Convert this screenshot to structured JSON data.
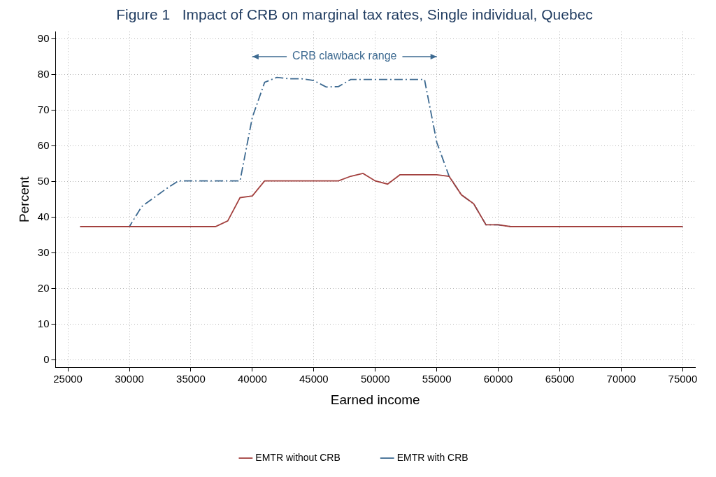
{
  "chart_data": {
    "type": "line",
    "title": "Figure 1   Impact of CRB on marginal tax rates, Single individual, Quebec",
    "x_label": "Earned income",
    "y_label": "Percent",
    "x": [
      26000,
      27000,
      28000,
      29000,
      30000,
      31000,
      32000,
      33000,
      34000,
      35000,
      36000,
      37000,
      38000,
      39000,
      40000,
      41000,
      42000,
      43000,
      44000,
      45000,
      46000,
      47000,
      48000,
      49000,
      50000,
      51000,
      52000,
      53000,
      54000,
      55000,
      56000,
      57000,
      58000,
      59000,
      60000,
      61000,
      62000,
      63000,
      64000,
      65000,
      66000,
      67000,
      68000,
      69000,
      70000,
      71000,
      72000,
      73000,
      74000,
      75000
    ],
    "series": [
      {
        "name": "EMTR without CRB",
        "color": "#a3413f",
        "line_style": "solid",
        "values": [
          37.4,
          37.4,
          37.4,
          37.4,
          37.4,
          37.4,
          37.4,
          37.4,
          37.4,
          37.4,
          37.4,
          37.4,
          39,
          45.5,
          46,
          50.2,
          50.2,
          50.2,
          50.2,
          50.2,
          50.2,
          50.2,
          51.5,
          52.3,
          50.2,
          49.3,
          51.9,
          51.9,
          51.9,
          51.9,
          51.5,
          46.3,
          43.8,
          37.9,
          37.9,
          37.4,
          37.4,
          37.4,
          37.4,
          37.4,
          37.4,
          37.4,
          37.4,
          37.4,
          37.4,
          37.4,
          37.4,
          37.4,
          37.4,
          37.4
        ]
      },
      {
        "name": "EMTR with CRB",
        "color": "#3d6a91",
        "line_style": "dashdot",
        "values": [
          37.4,
          37.4,
          37.4,
          37.4,
          37.4,
          43,
          45.5,
          48,
          50.2,
          50.2,
          50.2,
          50.2,
          50.2,
          50.2,
          68,
          77.8,
          79.2,
          78.8,
          78.8,
          78.3,
          76.5,
          76.6,
          78.6,
          78.6,
          78.6,
          78.6,
          78.6,
          78.6,
          78.6,
          61,
          51.5,
          46.3,
          43.8,
          37.9,
          37.9,
          37.4,
          37.4,
          37.4,
          37.4,
          37.4,
          37.4,
          37.4,
          37.4,
          37.4,
          37.4,
          37.4,
          37.4,
          37.4,
          37.4,
          37.4
        ]
      }
    ],
    "xlim": [
      24000,
      76000
    ],
    "xticks": [
      25000,
      30000,
      35000,
      40000,
      45000,
      50000,
      55000,
      60000,
      65000,
      70000,
      75000
    ],
    "ylim": [
      -2,
      92
    ],
    "yticks": [
      0,
      10,
      20,
      30,
      40,
      50,
      60,
      70,
      80,
      90
    ],
    "grid": true,
    "legend": "bottom",
    "annotations": [
      {
        "text": "CRB clawback range",
        "x_start": 40000,
        "x_end": 55000,
        "y": 85,
        "color": "#3d6a91"
      }
    ]
  }
}
